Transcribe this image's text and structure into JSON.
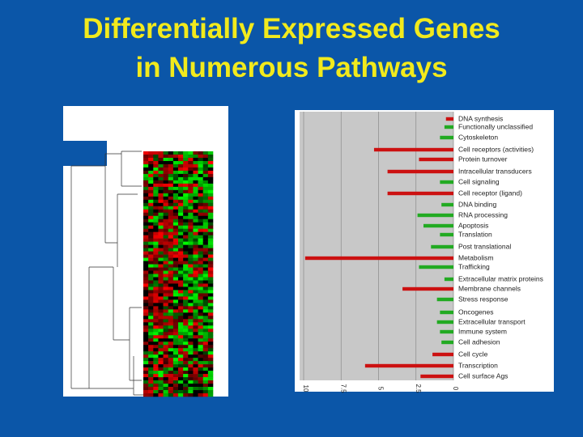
{
  "chart_data": {
    "type": "bar",
    "orientation": "horizontal-leftward",
    "title": "Differentially Expressed Genes",
    "subtitle": "in Numerous Pathways",
    "categories": [
      "DNA synthesis",
      "Functionally unclassified",
      "Cytoskeleton",
      "Cell receptors (activities)",
      "Protein turnover",
      "Intracellular transducers",
      "Cell signaling",
      "Cell receptor (ligand)",
      "DNA binding",
      "RNA processing",
      "Apoptosis",
      "Translation",
      "Post translational",
      "Metabolism",
      "Trafficking",
      "Extracellular matrix proteins",
      "Membrane channels",
      "Stress response",
      "Oncogenes",
      "Extracellular transport",
      "Immune system",
      "Cell adhesion",
      "Cell cycle",
      "Transcription",
      "Cell surface Ags"
    ],
    "values": [
      0.5,
      0.6,
      0.9,
      5.3,
      2.3,
      4.4,
      0.9,
      4.4,
      0.8,
      2.4,
      2.0,
      0.9,
      1.5,
      9.9,
      2.3,
      0.6,
      3.4,
      1.1,
      0.9,
      1.1,
      0.9,
      0.8,
      1.4,
      5.9,
      2.2
    ],
    "colors": [
      "#cc1111",
      "#22aa22",
      "#22aa22",
      "#cc1111",
      "#cc1111",
      "#cc1111",
      "#22aa22",
      "#cc1111",
      "#22aa22",
      "#22aa22",
      "#22aa22",
      "#22aa22",
      "#22aa22",
      "#cc1111",
      "#22aa22",
      "#22aa22",
      "#cc1111",
      "#22aa22",
      "#22aa22",
      "#22aa22",
      "#22aa22",
      "#22aa22",
      "#cc1111",
      "#cc1111",
      "#cc1111"
    ],
    "xlim": [
      0,
      10
    ],
    "xticks": [
      10,
      7.5,
      5,
      2.5,
      0
    ],
    "grid": true
  }
}
